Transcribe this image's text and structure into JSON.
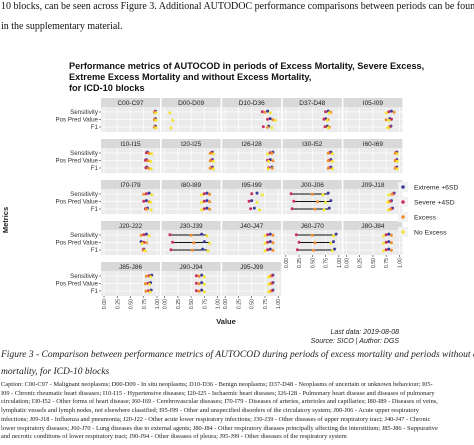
{
  "intro_text": {
    "line1": "10 blocks, can be seen across Figure 3. Additional AUTODOC performance comparisons between periods can be found",
    "line2": "in the supplementary material."
  },
  "chart_data": {
    "type": "scatter",
    "title": "Performance metrics of AUTOCOD in periods of Excess Mortality, Severe Excess, Extreme Excess Mortality and without Excess Mortality, for ICD-10 blocks",
    "title_lines": [
      "Performance metrics of AUTOCOD in periods of Excess Mortality, Severe Excess,",
      "Extreme Excess Mortality and without Excess Mortality,",
      "for ICD-10 blocks"
    ],
    "xlabel": "Value",
    "ylabel": "Metrics",
    "xlim": [
      0,
      1
    ],
    "x_ticks": [
      "0.00",
      "0.25",
      "0.50",
      "0.75",
      "1.00"
    ],
    "y_categories": [
      "Sensitivity",
      "Pos Pred Value",
      "F1"
    ],
    "legend_position": "right",
    "series": [
      {
        "name": "Extreme +6SD",
        "color": "#3b3b9b"
      },
      {
        "name": "Severe +4SD",
        "color": "#c9305e"
      },
      {
        "name": "Excess",
        "color": "#f0902e"
      },
      {
        "name": "No Excess",
        "color": "#f5e52e"
      }
    ],
    "panels": [
      {
        "label": "C00-C97",
        "Sensitivity": [
          0.97,
          0.96,
          0.95,
          0.98
        ],
        "Pos Pred Value": [
          0.97,
          0.96,
          0.95,
          0.98
        ],
        "F1": [
          0.97,
          0.96,
          0.95,
          0.98
        ]
      },
      {
        "label": "D00-D09",
        "Sensitivity": [
          null,
          null,
          null,
          0.1
        ],
        "Pos Pred Value": [
          null,
          null,
          null,
          0.15
        ],
        "F1": [
          null,
          null,
          null,
          0.12
        ]
      },
      {
        "label": "D10-D36",
        "Sensitivity": [
          0.8,
          0.7,
          0.75,
          0.85
        ],
        "Pos Pred Value": [
          0.85,
          0.8,
          0.9,
          0.95
        ],
        "F1": [
          0.82,
          0.72,
          0.8,
          0.88
        ]
      },
      {
        "label": "D37-D48",
        "Sensitivity": [
          0.8,
          0.75,
          0.85,
          0.82
        ],
        "Pos Pred Value": [
          0.75,
          0.72,
          0.8,
          0.78
        ],
        "F1": [
          0.78,
          0.74,
          0.82,
          0.8
        ]
      },
      {
        "label": "I05-I09",
        "Sensitivity": [
          0.85,
          0.8,
          0.9,
          0.75
        ],
        "Pos Pred Value": [
          0.82,
          0.85,
          0.75,
          0.8
        ],
        "F1": [
          0.84,
          0.82,
          0.8,
          0.78
        ]
      },
      {
        "label": "I10-I15",
        "Sensitivity": [
          0.82,
          0.8,
          0.85,
          0.9
        ],
        "Pos Pred Value": [
          0.8,
          0.78,
          0.83,
          0.88
        ],
        "F1": [
          0.81,
          0.79,
          0.84,
          0.89
        ]
      },
      {
        "label": "I20-I25",
        "Sensitivity": [
          0.9,
          0.88,
          0.86,
          0.92
        ],
        "Pos Pred Value": [
          0.9,
          0.88,
          0.86,
          0.92
        ],
        "F1": [
          0.9,
          0.88,
          0.86,
          0.92
        ]
      },
      {
        "label": "I26-I28",
        "Sensitivity": [
          0.9,
          0.85,
          0.88,
          0.8
        ],
        "Pos Pred Value": [
          0.85,
          0.8,
          0.9,
          0.82
        ],
        "F1": [
          0.88,
          0.82,
          0.89,
          0.81
        ]
      },
      {
        "label": "I30-I52",
        "Sensitivity": [
          0.85,
          0.82,
          0.8,
          0.88
        ],
        "Pos Pred Value": [
          0.85,
          0.82,
          0.8,
          0.88
        ],
        "F1": [
          0.85,
          0.82,
          0.8,
          0.88
        ]
      },
      {
        "label": "I60-I69",
        "Sensitivity": [
          0.95,
          0.93,
          0.92,
          0.96
        ],
        "Pos Pred Value": [
          0.95,
          0.93,
          0.92,
          0.96
        ],
        "F1": [
          0.95,
          0.93,
          0.92,
          0.96
        ]
      },
      {
        "label": "I70-I79",
        "Sensitivity": [
          0.85,
          0.8,
          0.75,
          0.9
        ],
        "Pos Pred Value": [
          0.8,
          0.75,
          0.85,
          0.88
        ],
        "F1": [
          0.82,
          0.78,
          0.8,
          0.89
        ]
      },
      {
        "label": "I80-I89",
        "Sensitivity": [
          0.8,
          0.75,
          0.85,
          0.7
        ],
        "Pos Pred Value": [
          0.8,
          0.75,
          0.85,
          0.7
        ],
        "F1": [
          0.8,
          0.75,
          0.85,
          0.7
        ]
      },
      {
        "label": "I95-I99",
        "Sensitivity": [
          0.6,
          0.5,
          null,
          0.7
        ],
        "Pos Pred Value": [
          0.5,
          0.45,
          null,
          0.6
        ],
        "F1": [
          0.55,
          0.48,
          null,
          0.65
        ]
      },
      {
        "label": "J00-J06",
        "Sensitivity": [
          0.8,
          0.1,
          0.5,
          0.7
        ],
        "Pos Pred Value": [
          0.85,
          0.15,
          0.6,
          0.75
        ],
        "F1": [
          0.82,
          0.12,
          0.55,
          0.72
        ]
      },
      {
        "label": "J09-J18",
        "Sensitivity": [
          0.9,
          0.88,
          0.86,
          0.8
        ],
        "Pos Pred Value": [
          0.85,
          0.83,
          0.8,
          0.78
        ],
        "F1": [
          0.87,
          0.85,
          0.83,
          0.79
        ]
      },
      {
        "label": "J20-J22",
        "Sensitivity": [
          0.8,
          0.75,
          0.7,
          0.85
        ],
        "Pos Pred Value": [
          0.7,
          0.75,
          0.8,
          0.72
        ],
        "F1": [
          0.75,
          0.74,
          0.75,
          0.78
        ]
      },
      {
        "label": "J30-J39",
        "Sensitivity": [
          0.7,
          0.1,
          0.5,
          0.8
        ],
        "Pos Pred Value": [
          0.75,
          0.15,
          0.55,
          0.85
        ],
        "F1": [
          0.72,
          0.12,
          0.52,
          0.82
        ]
      },
      {
        "label": "J40-J47",
        "Sensitivity": [
          0.85,
          0.8,
          0.9,
          0.75
        ],
        "Pos Pred Value": [
          0.85,
          0.8,
          0.9,
          0.75
        ],
        "F1": [
          0.85,
          0.8,
          0.9,
          0.75
        ]
      },
      {
        "label": "J60-J70",
        "Sensitivity": [
          0.95,
          0.2,
          0.5,
          0.9
        ],
        "Pos Pred Value": [
          0.9,
          0.25,
          0.55,
          0.85
        ],
        "F1": [
          0.92,
          0.22,
          0.52,
          0.88
        ]
      },
      {
        "label": "J80-J84",
        "Sensitivity": [
          0.8,
          0.75,
          0.85,
          0.7
        ],
        "Pos Pred Value": [
          0.8,
          0.75,
          0.85,
          0.7
        ],
        "F1": [
          0.8,
          0.75,
          0.85,
          0.7
        ]
      },
      {
        "label": "J85-J86",
        "Sensitivity": [
          0.9,
          0.85,
          0.8,
          0.88
        ],
        "Pos Pred Value": [
          0.88,
          0.83,
          0.78,
          0.86
        ],
        "F1": [
          0.89,
          0.84,
          0.79,
          0.87
        ]
      },
      {
        "label": "J90-J94",
        "Sensitivity": [
          0.7,
          0.6,
          0.65,
          0.75
        ],
        "Pos Pred Value": [
          0.7,
          0.6,
          0.65,
          0.75
        ],
        "F1": [
          0.7,
          0.6,
          0.65,
          0.75
        ]
      },
      {
        "label": "J95-J99",
        "Sensitivity": [
          0.9,
          0.88,
          0.85,
          0.82
        ],
        "Pos Pred Value": [
          0.9,
          0.88,
          0.85,
          0.82
        ],
        "F1": [
          0.9,
          0.88,
          0.85,
          0.82
        ]
      }
    ],
    "annotations": [
      "Last data: 2019-08-08",
      "Source: SICO | Author: DGS"
    ]
  },
  "caption": {
    "line1": "Figure 3 - Comparison between performance metrics of AUTOCOD during periods of excess mortality and periods without excess",
    "line2": "mortality, for ICD-10 blocks"
  },
  "block_legend": {
    "line1": "Caption: C00-C97 - Malignant neoplasms; D00-D09 - In situ neoplasms; D10-D36 - Benign neoplasms; D37-D48 - Neoplasms of uncertain or unknown behaviour; I05-",
    "line2": "I09 - Chronic rheumatic heart diseases; I10-I15 - Hypertensive diseases; I20-I25 - Ischaemic heart diseases; I26-I28 - Pulmonary heart disease and diseases of pulmonary",
    "line3": "circulation; I30-I52 - Other forms of heart disease; I60-I69 - Cerebrovascular diseases; I70-I79 - Diseases of arteries, arterioles and capillaries; I80-I89 - Diseases of veins,",
    "line4": "lymphatic vessels and lymph nodes, not elsewhere classified; I95-I99 - Other and unspecified disorders of the circulatory system; J00-J06 - Acute upper respiratory",
    "line5": "infections; J09-J18 - Influenza and pneumonia; J20-J22 - Other acute lower respiratory infections; J30-J39 - Other diseases of upper respiratory tract; J40-J47 - Chronic",
    "line6": "lower respiratory diseases; J60-J70 - Lung diseases due to external agents; J80-J84 - Other respiratory diseases principally affecting the interstitium; J85-J86 - Suppurative",
    "line7": "and necrotic conditions of lower respiratory tract; J90-J94 - Other diseases of pleura; J95-J99 - Other diseases of the respiratory system"
  }
}
